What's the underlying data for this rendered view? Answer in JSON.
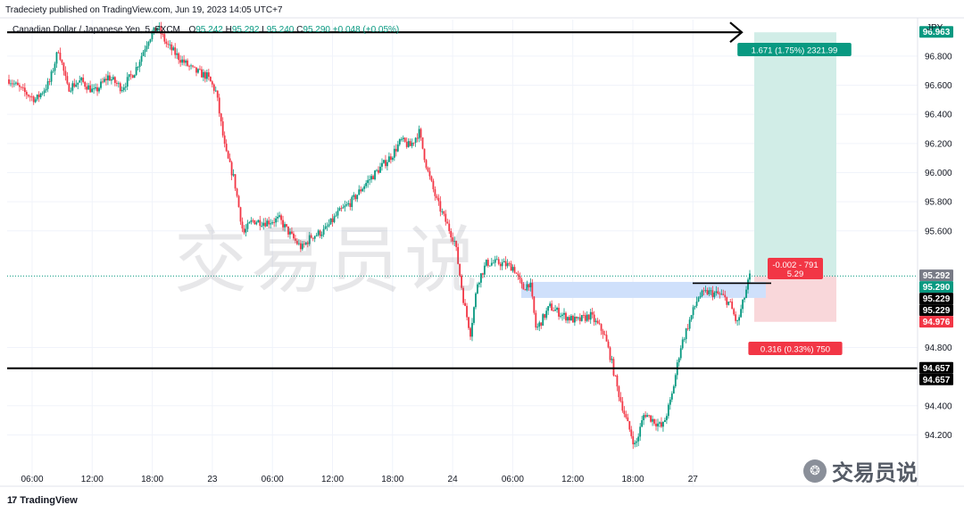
{
  "publisher_line": "Tradeciety published on TradingView.com, Jun 19, 2023 14:05 UTC+7",
  "symbol": {
    "name": "Canadian Dollar / Japanese Yen, 5, FXCM",
    "o_label": "O",
    "o_value": "95.242",
    "h_label": "H",
    "h_value": "95.292",
    "l_label": "L",
    "l_value": "95.240",
    "c_label": "C",
    "c_value": "95.290",
    "change": "+0.048 (+0.05%)"
  },
  "currency": "JPY",
  "footer": {
    "logo": "17",
    "brand": "TradingView"
  },
  "watermark": {
    "center_text": "交易员说",
    "corner_text": "交易员说",
    "corner_icon": "wechat-icon"
  },
  "colors": {
    "up": "#089981",
    "down": "#f23645",
    "target_fill": "#d1ede7",
    "stop_fill": "#f9d7da",
    "zone_fill": "#cfe0fb",
    "line": "#000000"
  },
  "chart_data": {
    "type": "candlestick",
    "ylim": [
      93.97,
      97.05
    ],
    "y_ticks": [
      "96.800",
      "96.600",
      "96.400",
      "96.200",
      "96.000",
      "95.800",
      "95.600",
      "94.800",
      "94.400",
      "94.200"
    ],
    "x_ticks": [
      "06:00",
      "12:00",
      "18:00",
      "23",
      "06:00",
      "12:00",
      "18:00",
      "24",
      "06:00",
      "12:00",
      "18:00",
      "27"
    ],
    "grid": true,
    "horizontal_levels": [
      96.963,
      94.657
    ],
    "price_labels": [
      {
        "text": "96.963",
        "price": 96.963,
        "bg": "#089981",
        "color": "#ffffff"
      },
      {
        "text": "95.292",
        "price": 95.292,
        "bg": "#787b86",
        "color": "#ffffff"
      },
      {
        "text": "95.290",
        "price": 95.29,
        "bg": "#089981",
        "color": "#ffffff"
      },
      {
        "text": "95.229",
        "price": 95.229,
        "bg": "#000000",
        "color": "#ffffff"
      },
      {
        "text": "95.229",
        "price": 95.229,
        "bg": "#000000",
        "color": "#ffffff"
      },
      {
        "text": "94.976",
        "price": 94.976,
        "bg": "#f23645",
        "color": "#ffffff"
      },
      {
        "text": "94.657",
        "price": 94.657,
        "bg": "#000000",
        "color": "#ffffff"
      },
      {
        "text": "94.657",
        "price": 94.657,
        "bg": "#000000",
        "color": "#ffffff"
      }
    ],
    "position": {
      "entry": 95.29,
      "target": 96.963,
      "stop": 94.976,
      "target_label": "1.671 (1.75%) 2321.99",
      "center_label_1": "-0.002 - 791",
      "center_label_2": "5.29",
      "stop_label": "0.316 (0.33%) 750"
    },
    "demand_zone": {
      "top": 95.25,
      "bottom": 95.14
    },
    "path_points": [
      [
        0.0,
        96.64
      ],
      [
        0.015,
        96.56
      ],
      [
        0.03,
        96.5
      ],
      [
        0.045,
        96.62
      ],
      [
        0.055,
        96.85
      ],
      [
        0.065,
        96.58
      ],
      [
        0.08,
        96.63
      ],
      [
        0.095,
        96.55
      ],
      [
        0.11,
        96.66
      ],
      [
        0.125,
        96.58
      ],
      [
        0.14,
        96.7
      ],
      [
        0.155,
        96.92
      ],
      [
        0.165,
        97.0
      ],
      [
        0.175,
        96.88
      ],
      [
        0.19,
        96.78
      ],
      [
        0.205,
        96.7
      ],
      [
        0.22,
        96.66
      ],
      [
        0.23,
        96.55
      ],
      [
        0.24,
        96.15
      ],
      [
        0.25,
        95.95
      ],
      [
        0.26,
        95.58
      ],
      [
        0.27,
        95.67
      ],
      [
        0.285,
        95.66
      ],
      [
        0.3,
        95.68
      ],
      [
        0.315,
        95.55
      ],
      [
        0.325,
        95.48
      ],
      [
        0.335,
        95.56
      ],
      [
        0.35,
        95.6
      ],
      [
        0.365,
        95.72
      ],
      [
        0.38,
        95.8
      ],
      [
        0.395,
        95.92
      ],
      [
        0.41,
        96.02
      ],
      [
        0.425,
        96.12
      ],
      [
        0.435,
        96.22
      ],
      [
        0.445,
        96.18
      ],
      [
        0.455,
        96.28
      ],
      [
        0.465,
        96.0
      ],
      [
        0.475,
        95.8
      ],
      [
        0.485,
        95.66
      ],
      [
        0.495,
        95.52
      ],
      [
        0.505,
        95.1
      ],
      [
        0.512,
        94.9
      ],
      [
        0.52,
        95.25
      ],
      [
        0.53,
        95.38
      ],
      [
        0.545,
        95.38
      ],
      [
        0.56,
        95.35
      ],
      [
        0.57,
        95.2
      ],
      [
        0.578,
        95.25
      ],
      [
        0.585,
        94.92
      ],
      [
        0.6,
        95.08
      ],
      [
        0.615,
        95.02
      ],
      [
        0.63,
        94.98
      ],
      [
        0.645,
        95.02
      ],
      [
        0.66,
        94.9
      ],
      [
        0.668,
        94.72
      ],
      [
        0.675,
        94.52
      ],
      [
        0.685,
        94.3
      ],
      [
        0.695,
        94.12
      ],
      [
        0.705,
        94.35
      ],
      [
        0.715,
        94.3
      ],
      [
        0.725,
        94.25
      ],
      [
        0.735,
        94.45
      ],
      [
        0.745,
        94.8
      ],
      [
        0.755,
        94.98
      ],
      [
        0.765,
        95.15
      ],
      [
        0.775,
        95.18
      ],
      [
        0.79,
        95.16
      ],
      [
        0.8,
        95.1
      ],
      [
        0.808,
        94.96
      ],
      [
        0.815,
        95.12
      ],
      [
        0.822,
        95.29
      ]
    ]
  }
}
